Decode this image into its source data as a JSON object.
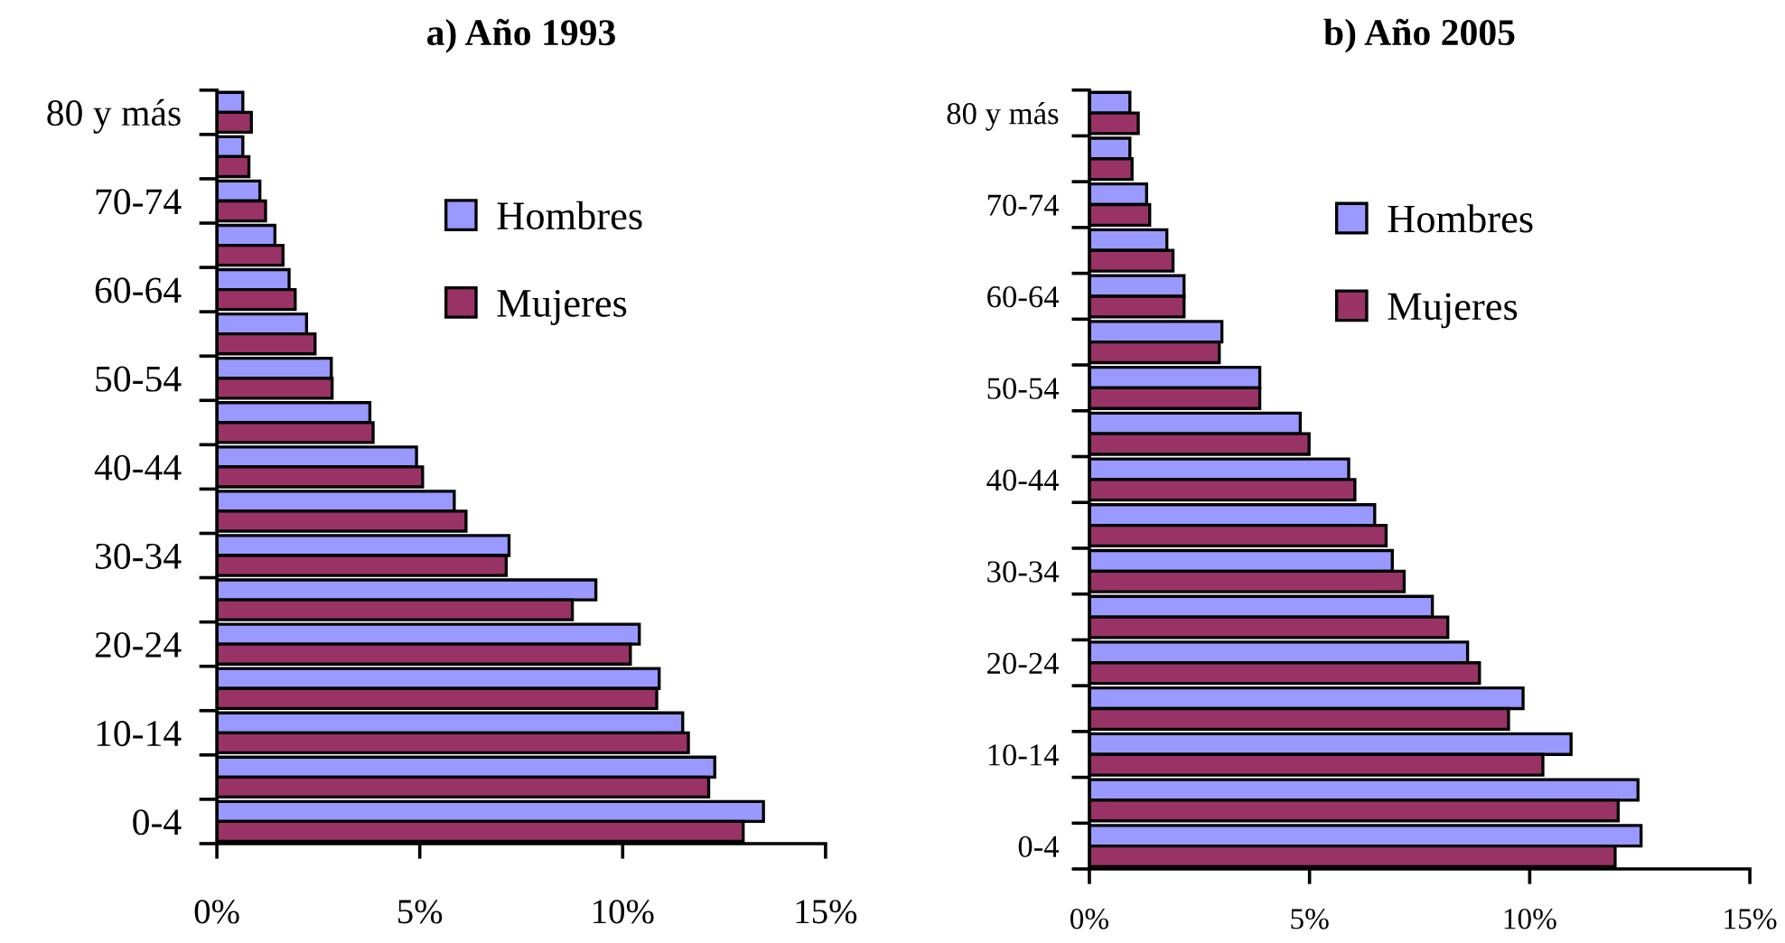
{
  "chart_data": [
    {
      "type": "bar",
      "orientation": "horizontal",
      "title": "a) Año 1993",
      "categories": [
        "80 y más",
        null,
        "70-74",
        null,
        "60-64",
        null,
        "50-54",
        null,
        "40-44",
        null,
        "30-34",
        null,
        "20-24",
        null,
        "10-14",
        null,
        "0-4"
      ],
      "series": [
        {
          "name": "Hombres",
          "color": "#9999ff",
          "values": [
            0.64,
            0.64,
            1.06,
            1.43,
            1.78,
            2.21,
            2.82,
            3.77,
            4.92,
            5.85,
            7.2,
            9.34,
            10.41,
            10.9,
            11.48,
            12.27,
            13.47
          ]
        },
        {
          "name": "Mujeres",
          "color": "#993366",
          "values": [
            0.85,
            0.79,
            1.2,
            1.63,
            1.93,
            2.42,
            2.84,
            3.85,
            5.07,
            6.14,
            7.13,
            8.76,
            10.19,
            10.84,
            11.62,
            12.12,
            12.97
          ]
        }
      ],
      "xlim": [
        0,
        15
      ],
      "xticks": [
        {
          "value": 0,
          "label": "0%"
        },
        {
          "value": 5,
          "label": "5%"
        },
        {
          "value": 10,
          "label": "10%"
        },
        {
          "value": 15,
          "label": "15%"
        }
      ],
      "legend": "top",
      "grid": false
    },
    {
      "type": "bar",
      "orientation": "horizontal",
      "title": "b) Año 2005",
      "categories": [
        "80 y más",
        null,
        "70-74",
        null,
        "60-64",
        null,
        "50-54",
        null,
        "40-44",
        null,
        "30-34",
        null,
        "20-24",
        null,
        "10-14",
        null,
        "0-4"
      ],
      "series": [
        {
          "name": "Hombres",
          "color": "#9999ff",
          "values": [
            0.92,
            0.92,
            1.3,
            1.76,
            2.15,
            3.01,
            3.87,
            4.79,
            5.89,
            6.48,
            6.88,
            7.79,
            8.59,
            9.85,
            10.94,
            12.46,
            12.53
          ]
        },
        {
          "name": "Mujeres",
          "color": "#993366",
          "values": [
            1.11,
            0.97,
            1.37,
            1.9,
            2.15,
            2.95,
            3.87,
            4.99,
            6.03,
            6.74,
            7.15,
            8.14,
            8.86,
            9.52,
            10.3,
            12.01,
            11.94
          ]
        }
      ],
      "xlim": [
        0,
        15
      ],
      "xticks": [
        {
          "value": 0,
          "label": "0%"
        },
        {
          "value": 5,
          "label": "5%"
        },
        {
          "value": 10,
          "label": "10%"
        },
        {
          "value": 15,
          "label": "15%"
        }
      ],
      "legend": "top",
      "grid": false
    }
  ]
}
